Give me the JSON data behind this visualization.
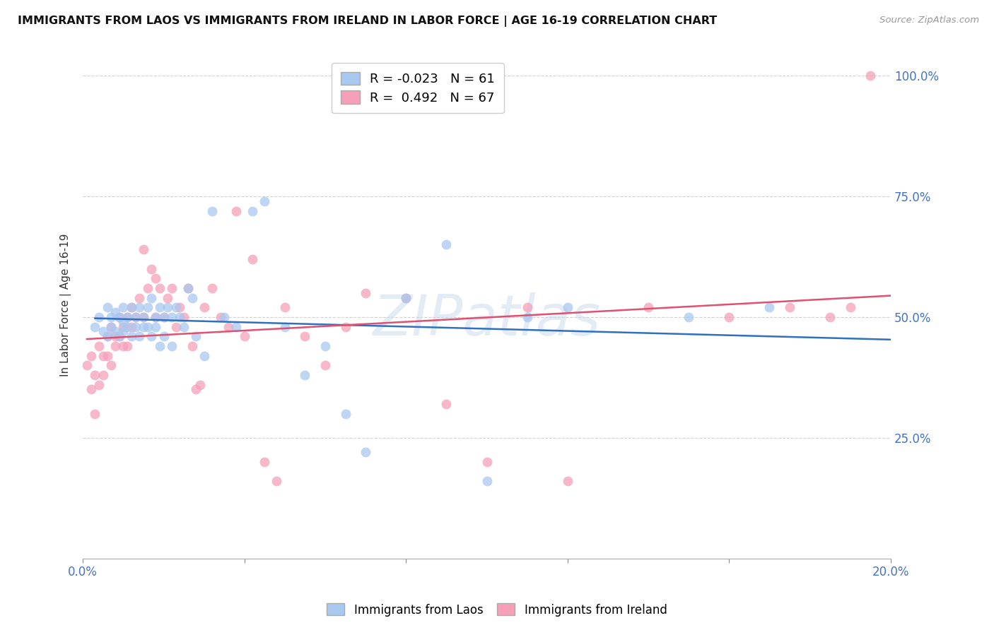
{
  "title": "IMMIGRANTS FROM LAOS VS IMMIGRANTS FROM IRELAND IN LABOR FORCE | AGE 16-19 CORRELATION CHART",
  "source": "Source: ZipAtlas.com",
  "ylabel": "In Labor Force | Age 16-19",
  "xlim": [
    0.0,
    0.2
  ],
  "ylim": [
    0.0,
    1.05
  ],
  "legend_laos_R": "-0.023",
  "legend_laos_N": "61",
  "legend_ireland_R": "0.492",
  "legend_ireland_N": "67",
  "laos_color": "#A8C8F0",
  "ireland_color": "#F5A0B8",
  "laos_line_color": "#3070C0",
  "ireland_line_color": "#E05070",
  "background_color": "#FFFFFF",
  "grid_color": "#CCCCCC",
  "watermark": "ZIPatlas",
  "laos_x": [
    0.003,
    0.004,
    0.005,
    0.006,
    0.006,
    0.007,
    0.007,
    0.008,
    0.008,
    0.009,
    0.009,
    0.01,
    0.01,
    0.01,
    0.011,
    0.011,
    0.012,
    0.012,
    0.013,
    0.013,
    0.014,
    0.014,
    0.015,
    0.015,
    0.016,
    0.016,
    0.017,
    0.017,
    0.018,
    0.018,
    0.019,
    0.019,
    0.02,
    0.02,
    0.021,
    0.022,
    0.022,
    0.023,
    0.024,
    0.025,
    0.026,
    0.027,
    0.028,
    0.03,
    0.032,
    0.035,
    0.038,
    0.042,
    0.045,
    0.05,
    0.055,
    0.06,
    0.065,
    0.07,
    0.08,
    0.09,
    0.1,
    0.11,
    0.12,
    0.15,
    0.17
  ],
  "laos_y": [
    0.48,
    0.5,
    0.47,
    0.52,
    0.46,
    0.5,
    0.48,
    0.51,
    0.47,
    0.5,
    0.46,
    0.52,
    0.49,
    0.47,
    0.5,
    0.48,
    0.52,
    0.46,
    0.5,
    0.48,
    0.52,
    0.46,
    0.5,
    0.48,
    0.52,
    0.48,
    0.54,
    0.46,
    0.5,
    0.48,
    0.52,
    0.44,
    0.5,
    0.46,
    0.52,
    0.5,
    0.44,
    0.52,
    0.5,
    0.48,
    0.56,
    0.54,
    0.46,
    0.42,
    0.72,
    0.5,
    0.48,
    0.72,
    0.74,
    0.48,
    0.38,
    0.44,
    0.3,
    0.22,
    0.54,
    0.65,
    0.16,
    0.5,
    0.52,
    0.5,
    0.52
  ],
  "ireland_x": [
    0.001,
    0.002,
    0.002,
    0.003,
    0.003,
    0.004,
    0.004,
    0.005,
    0.005,
    0.006,
    0.006,
    0.007,
    0.007,
    0.008,
    0.008,
    0.009,
    0.009,
    0.01,
    0.01,
    0.011,
    0.011,
    0.012,
    0.012,
    0.013,
    0.014,
    0.015,
    0.015,
    0.016,
    0.017,
    0.018,
    0.018,
    0.019,
    0.02,
    0.021,
    0.022,
    0.023,
    0.024,
    0.025,
    0.026,
    0.027,
    0.028,
    0.029,
    0.03,
    0.032,
    0.034,
    0.036,
    0.038,
    0.04,
    0.042,
    0.045,
    0.048,
    0.05,
    0.055,
    0.06,
    0.065,
    0.07,
    0.08,
    0.09,
    0.1,
    0.11,
    0.12,
    0.14,
    0.16,
    0.175,
    0.185,
    0.19,
    0.195
  ],
  "ireland_y": [
    0.4,
    0.35,
    0.42,
    0.38,
    0.3,
    0.44,
    0.36,
    0.42,
    0.38,
    0.46,
    0.42,
    0.48,
    0.4,
    0.46,
    0.44,
    0.5,
    0.46,
    0.44,
    0.48,
    0.5,
    0.44,
    0.52,
    0.48,
    0.5,
    0.54,
    0.64,
    0.5,
    0.56,
    0.6,
    0.58,
    0.5,
    0.56,
    0.5,
    0.54,
    0.56,
    0.48,
    0.52,
    0.5,
    0.56,
    0.44,
    0.35,
    0.36,
    0.52,
    0.56,
    0.5,
    0.48,
    0.72,
    0.46,
    0.62,
    0.2,
    0.16,
    0.52,
    0.46,
    0.4,
    0.48,
    0.55,
    0.54,
    0.32,
    0.2,
    0.52,
    0.16,
    0.52,
    0.5,
    0.52,
    0.5,
    0.52,
    1.0
  ]
}
